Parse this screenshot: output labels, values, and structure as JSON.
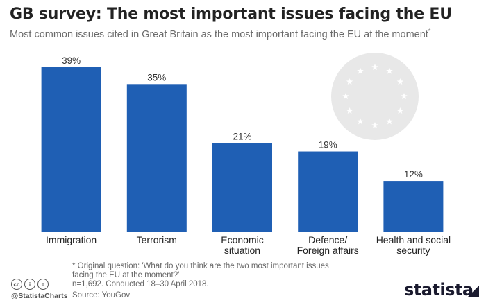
{
  "header": {
    "title": "GB survey: The most important issues facing the EU",
    "subtitle": "Most common issues cited in Great Britain as the most important facing the EU at the moment",
    "subtitle_mark": "*"
  },
  "chart_data": {
    "type": "bar",
    "categories": [
      [
        "Immigration"
      ],
      [
        "Terrorism"
      ],
      [
        "Economic",
        "situation"
      ],
      [
        "Defence/",
        "Foreign affairs"
      ],
      [
        "Health and social",
        "security"
      ]
    ],
    "values": [
      39,
      35,
      21,
      19,
      12
    ],
    "value_labels": [
      "39%",
      "35%",
      "21%",
      "19%",
      "12%"
    ],
    "ylim": [
      0,
      42
    ],
    "bar_color": "#1f5fb4",
    "grid": false
  },
  "footer": {
    "footnote_line1": "* Original question: 'What do you think are the two most important issues",
    "footnote_line2": "facing the EU at the moment?'",
    "footnote_line3": "n=1,692. Conducted 18–30 April 2018.",
    "source": "Source: YouGov",
    "handle": "@StatistaCharts",
    "brand": "statista",
    "cc_icons": [
      "cc",
      "by",
      "nd"
    ]
  },
  "decor": {
    "eu_flag_color": "#e8e8e8",
    "star_color": "#ffffff"
  }
}
